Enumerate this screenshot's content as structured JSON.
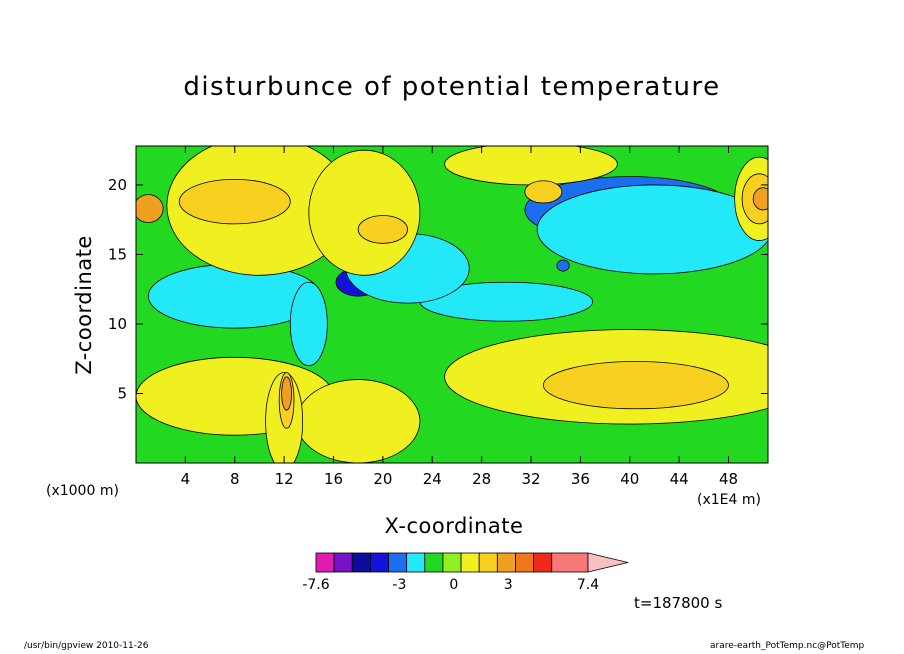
{
  "chart_data": {
    "type": "heatmap",
    "title": "disturbunce of potential temperature",
    "xlabel": "X-coordinate",
    "ylabel": "Z-coordinate",
    "x_unit_left": "(x1000 m)",
    "x_unit_right": "(x1E4 m)",
    "x_ticks": [
      4,
      8,
      12,
      16,
      20,
      24,
      28,
      32,
      36,
      40,
      44,
      48
    ],
    "y_ticks": [
      5,
      10,
      15,
      20
    ],
    "xlim": [
      0,
      51.2
    ],
    "ylim": [
      0,
      22.8
    ],
    "grid": false,
    "colorbar": {
      "levels": [
        -7.6,
        -6.6,
        -5.6,
        -4.6,
        -3.6,
        -2.6,
        -1.6,
        -0.6,
        0.4,
        1.4,
        2.4,
        3.4,
        4.4,
        5.4,
        7.4
      ],
      "tick_labels": [
        "-7.6",
        "-3",
        "0",
        "3",
        "7.4"
      ],
      "tick_values": [
        -7.6,
        -3,
        0,
        3,
        7.4
      ],
      "colors": [
        "#e01bb0",
        "#7a10c8",
        "#0c0c9c",
        "#1212d8",
        "#1c6ef0",
        "#22e8f8",
        "#22d820",
        "#90f020",
        "#f0f020",
        "#f8d020",
        "#f0a020",
        "#f07818",
        "#f02a18",
        "#f87878"
      ],
      "extension_color": "#f8c0c0"
    },
    "contour_fields": [
      {
        "level": "-4.5",
        "color": "#0c0c9c",
        "regions": [
          {
            "x": 41.5,
            "y": 18.4,
            "rx": 1.4,
            "ry": 0.6
          }
        ]
      },
      {
        "level": "-3.5",
        "color": "#1212d8",
        "regions": [
          {
            "x": 40.5,
            "y": 18.6,
            "rx": 5.5,
            "ry": 1.5
          },
          {
            "x": 18.0,
            "y": 13.0,
            "rx": 1.8,
            "ry": 1.0
          },
          {
            "x": 12.0,
            "y": 13.0,
            "rx": 0.4,
            "ry": 1.3
          }
        ]
      },
      {
        "level": "-2.5",
        "color": "#1c6ef0",
        "regions": [
          {
            "x": 40.0,
            "y": 18.2,
            "rx": 8.5,
            "ry": 2.4
          },
          {
            "x": 21.0,
            "y": 14.0,
            "rx": 3.0,
            "ry": 1.8
          },
          {
            "x": 34.6,
            "y": 14.2,
            "rx": 0.5,
            "ry": 0.4
          }
        ]
      },
      {
        "level": "-1.0",
        "color": "#22e8f8",
        "regions": [
          {
            "x": 8.0,
            "y": 12.0,
            "rx": 7.0,
            "ry": 2.3
          },
          {
            "x": 30.0,
            "y": 11.6,
            "rx": 7.0,
            "ry": 1.4
          },
          {
            "x": 42.0,
            "y": 16.8,
            "rx": 9.5,
            "ry": 3.2
          },
          {
            "x": 22.0,
            "y": 14.0,
            "rx": 5.0,
            "ry": 2.5
          },
          {
            "x": 14.0,
            "y": 10.0,
            "rx": 1.5,
            "ry": 3.0
          }
        ]
      },
      {
        "level": "0.5",
        "color": "#f0f020",
        "regions": [
          {
            "x": 10.0,
            "y": 18.5,
            "rx": 7.5,
            "ry": 5.0
          },
          {
            "x": 18.5,
            "y": 18.0,
            "rx": 4.5,
            "ry": 4.5
          },
          {
            "x": 32.0,
            "y": 21.5,
            "rx": 7.0,
            "ry": 1.5
          },
          {
            "x": 40.0,
            "y": 6.2,
            "rx": 15.0,
            "ry": 3.4
          },
          {
            "x": 8.0,
            "y": 4.8,
            "rx": 8.0,
            "ry": 2.8
          },
          {
            "x": 18.0,
            "y": 3.0,
            "rx": 5.0,
            "ry": 3.0
          },
          {
            "x": 12.0,
            "y": 3.0,
            "rx": 1.5,
            "ry": 3.5
          },
          {
            "x": 50.5,
            "y": 19.0,
            "rx": 2.0,
            "ry": 3.0
          }
        ]
      },
      {
        "level": "1.5",
        "color": "#f8d020",
        "regions": [
          {
            "x": 8.0,
            "y": 18.8,
            "rx": 4.5,
            "ry": 1.6
          },
          {
            "x": 40.5,
            "y": 5.6,
            "rx": 7.5,
            "ry": 1.7
          },
          {
            "x": 33.0,
            "y": 19.5,
            "rx": 1.5,
            "ry": 0.8
          },
          {
            "x": 20.0,
            "y": 16.8,
            "rx": 2.0,
            "ry": 1.0
          },
          {
            "x": 50.5,
            "y": 19.0,
            "rx": 1.4,
            "ry": 1.8
          },
          {
            "x": 12.2,
            "y": 4.5,
            "rx": 0.6,
            "ry": 2.0
          }
        ]
      },
      {
        "level": "2.5",
        "color": "#f0a020",
        "regions": [
          {
            "x": 1.0,
            "y": 18.3,
            "rx": 1.2,
            "ry": 1.0
          },
          {
            "x": 50.8,
            "y": 19.0,
            "rx": 0.8,
            "ry": 0.8
          },
          {
            "x": 12.2,
            "y": 5.0,
            "rx": 0.4,
            "ry": 1.2
          }
        ]
      }
    ]
  },
  "footer": {
    "left": "/usr/bin/gpview  2010-11-26",
    "right": "arare-earth_PotTemp.nc@PotTemp"
  },
  "time_label": "t=187800 s"
}
